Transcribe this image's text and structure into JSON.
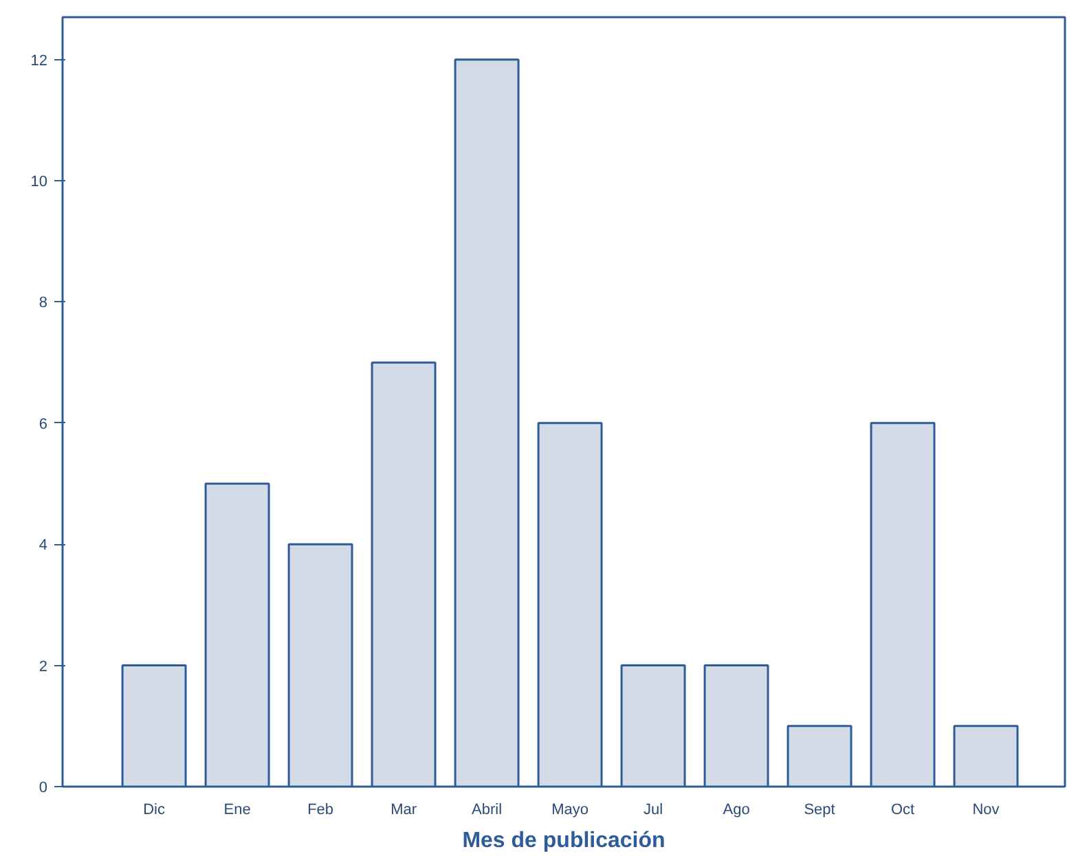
{
  "chart_data": {
    "type": "bar",
    "xlabel": "Mes de publicación",
    "categories": [
      "Dic",
      "Ene",
      "Feb",
      "Mar",
      "Abril",
      "Mayo",
      "Jul",
      "Ago",
      "Sept",
      "Oct",
      "Nov"
    ],
    "values": [
      2,
      5,
      4,
      7,
      12,
      6,
      2,
      2,
      1,
      6,
      1
    ],
    "color": "#d3dce6",
    "ylim": [
      0,
      12.7
    ],
    "yticks": [
      0,
      2,
      4,
      6,
      8,
      10,
      12
    ],
    "grid": false
  }
}
